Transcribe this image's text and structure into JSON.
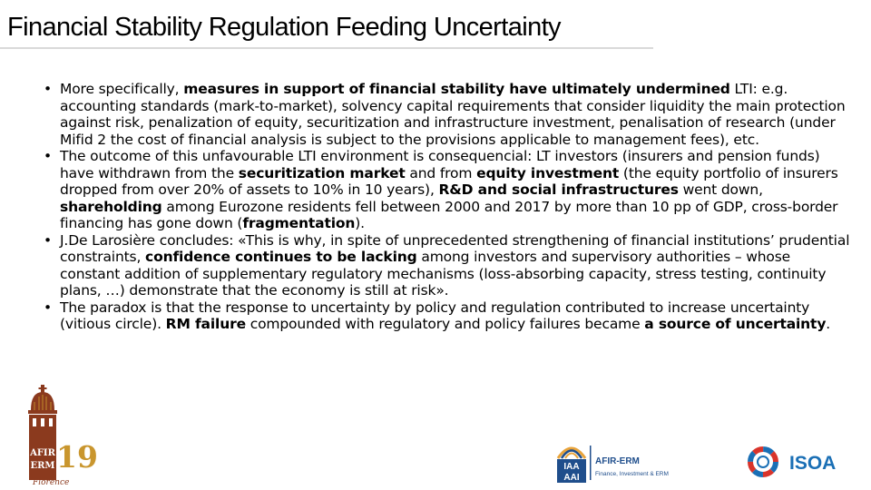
{
  "title": "Financial Stability Regulation Feeding Uncertainty",
  "bullets": [
    {
      "segments": [
        {
          "text": "More specifically, ",
          "bold": false
        },
        {
          "text": "measures in support of financial stability have ultimately undermined",
          "bold": true
        },
        {
          "text": " LTI: e.g. accounting standards (mark-to-market), solvency capital requirements that consider liquidity the main protection against risk, penalization of equity, securitization and infrastructure investment, penalisation of research (under Mifid 2 the cost of financial analysis is subject to the provisions applicable to management fees), etc.",
          "bold": false
        }
      ]
    },
    {
      "segments": [
        {
          "text": "The outcome of this unfavourable LTI environment is consequencial: LT investors (insurers and pension funds) have withdrawn from the ",
          "bold": false
        },
        {
          "text": "securitization market",
          "bold": true
        },
        {
          "text": " and from ",
          "bold": false
        },
        {
          "text": "equity investment",
          "bold": true
        },
        {
          "text": " (the equity portfolio of insurers dropped from over 20% of assets to 10% in 10 years), ",
          "bold": false
        },
        {
          "text": "R&D and social infrastructures",
          "bold": true
        },
        {
          "text": " went down, ",
          "bold": false
        },
        {
          "text": "shareholding",
          "bold": true
        },
        {
          "text": " among Eurozone residents fell between 2000 and 2017 by more than 10 pp of GDP, cross-border financing has gone down (",
          "bold": false
        },
        {
          "text": "fragmentation",
          "bold": true
        },
        {
          "text": ").",
          "bold": false
        }
      ]
    },
    {
      "segments": [
        {
          "text": "J.De Larosière concludes: «This is why, in spite of unprecedented strengthening of financial institutions’ prudential constraints, ",
          "bold": false
        },
        {
          "text": "confidence continues to be lacking",
          "bold": true
        },
        {
          "text": " among investors and supervisory authorities – whose constant addition of supplementary regulatory mechanisms (loss-absorbing capacity, stress testing, continuity plans, …) demonstrate that the economy is still at risk».",
          "bold": false
        }
      ]
    },
    {
      "segments": [
        {
          "text": "The paradox is that the response to uncertainty by policy and regulation contributed to increase uncertainty (vitious circle). ",
          "bold": false
        },
        {
          "text": "RM failure",
          "bold": true
        },
        {
          "text": " compounded with regulatory and policy failures became ",
          "bold": false
        },
        {
          "text": "a source of uncertainty",
          "bold": true
        },
        {
          "text": ".",
          "bold": false
        }
      ]
    }
  ],
  "logos": {
    "afir": {
      "line1": "AFIR",
      "line2": "ERM",
      "year": "19",
      "city": "Florence"
    },
    "iaa": {
      "mark1": "IAA",
      "mark2": "AAI",
      "name": "AFIR-ERM",
      "tagline": "Finance, Investment & ERM"
    },
    "isoa": {
      "name": "ISOA"
    }
  },
  "colors": {
    "afir_brown": "#8b3a1e",
    "afir_gold": "#c9962e",
    "iaa_blue": "#1f4e8c",
    "iaa_gold": "#e8a33a",
    "isoa_blue": "#1a6fb5",
    "isoa_red": "#d9342b"
  }
}
